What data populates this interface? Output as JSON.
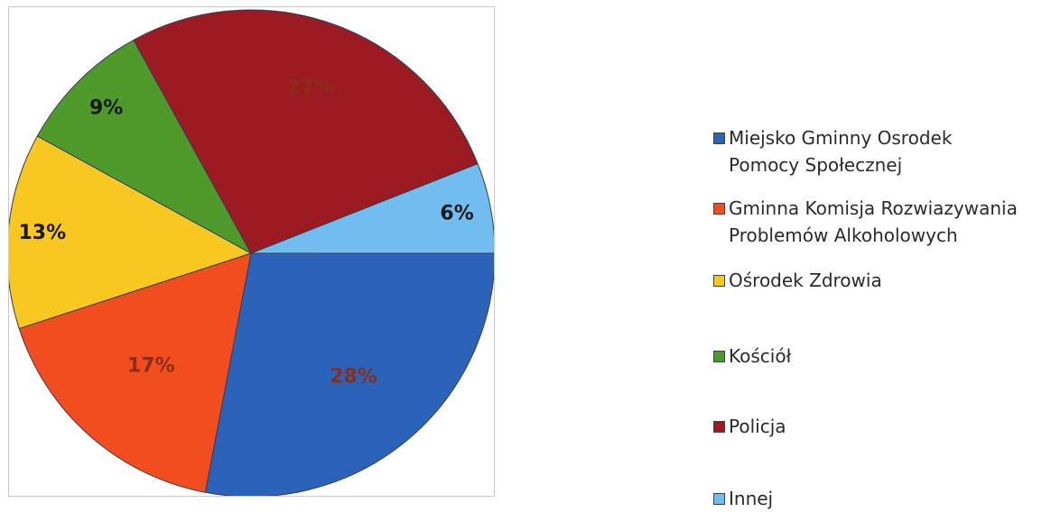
{
  "chart_data": {
    "type": "pie",
    "categories": [
      "Miejsko Gminny Osrodek Pomocy Społecznej",
      "Gminna Komisja Rozwiazywania Problemów Alkoholowych",
      "Ośrodek Zdrowia",
      "Kościół",
      "Policja",
      "Innej"
    ],
    "values": [
      28,
      17,
      13,
      9,
      27,
      6
    ],
    "data_labels": [
      "28%",
      "17%",
      "13%",
      "9%",
      "27%",
      "6%"
    ],
    "colors": [
      "#2b63b8",
      "#f24d1e",
      "#f9c820",
      "#4e9a2a",
      "#9c1a22",
      "#71bdf0"
    ],
    "label_colors": [
      "#8a2d1a",
      "#8a2d1a",
      "#1a1a1a",
      "#1a1a1a",
      "#8a2d1a",
      "#1a1a1a"
    ],
    "title": "",
    "legend_position": "right"
  },
  "legend": {
    "items": [
      {
        "label": "Miejsko Gminny Osrodek\nPomocy Społecznej",
        "color": "#2b63b8"
      },
      {
        "label": "Gminna Komisja Rozwiazywania\nProblemów Alkoholowych",
        "color": "#f24d1e"
      },
      {
        "label": "Ośrodek Zdrowia",
        "color": "#f9c820"
      },
      {
        "label": "Kościół",
        "color": "#4e9a2a"
      },
      {
        "label": "Policja",
        "color": "#9c1a22"
      },
      {
        "label": "Innej",
        "color": "#71bdf0"
      }
    ]
  }
}
